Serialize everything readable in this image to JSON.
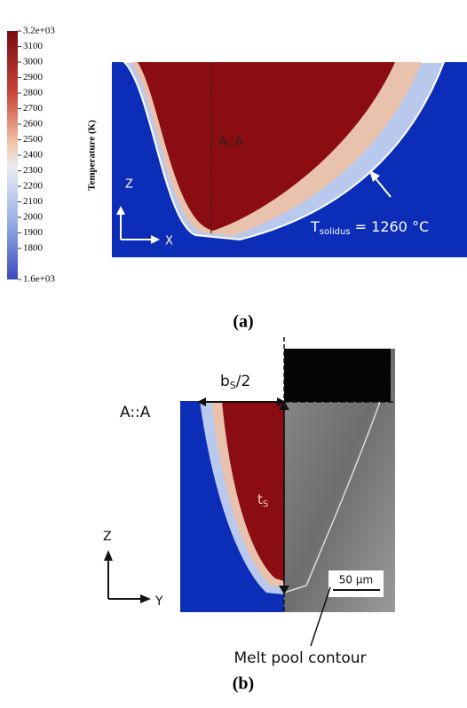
{
  "colorbar": {
    "title": "Temperature (K)",
    "labels": [
      "3.2e+03",
      "3100",
      "3000",
      "2900",
      "2800",
      "2700",
      "2600",
      "2500",
      "2400",
      "2300",
      "2200",
      "2100",
      "2000",
      "1900",
      "1800",
      "1.6e+03"
    ]
  },
  "panel_a": {
    "section": "A::A",
    "axis_z": "Z",
    "axis_x": "X",
    "solidus": {
      "base": "T",
      "sub": "solidus",
      "rest": " = 1260 °C"
    },
    "caption": "(a)"
  },
  "panel_b": {
    "width_label": {
      "base": "b",
      "sub": "S",
      "rest": "/2"
    },
    "section": "A::A",
    "depth_label": {
      "base": "t",
      "sub": "S"
    },
    "axis_z": "Z",
    "axis_y": "Y",
    "scale_bar": "50 µm",
    "contour_label": "Melt pool contour",
    "caption": "(b)"
  }
}
